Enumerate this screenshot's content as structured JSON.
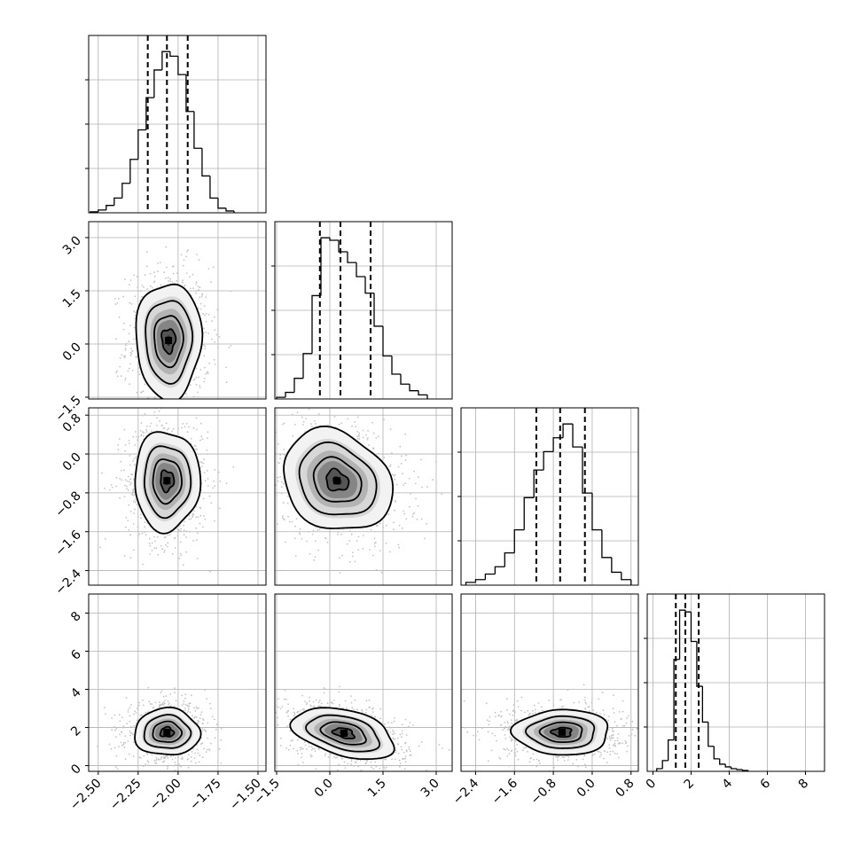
{
  "chart_data": {
    "type": "corner",
    "grid": true,
    "dims": [
      {
        "x_range": [
          -2.56,
          -1.45
        ],
        "x_ticks": [
          -2.5,
          -2.25,
          -2.0,
          -1.75,
          -1.5
        ],
        "x_tick_labels": [
          "−2.50",
          "−2.25",
          "−2.00",
          "−1.75",
          "−1.50"
        ],
        "y_ticks": [],
        "y_tick_labels": [],
        "mean": -2.06,
        "sd": 0.1,
        "quantiles": [
          -2.19,
          -2.07,
          -1.94
        ],
        "hist_edges": [
          -2.55,
          -2.5,
          -2.45,
          -2.4,
          -2.35,
          -2.3,
          -2.25,
          -2.2,
          -2.15,
          -2.1,
          -2.05,
          -2.0,
          -1.95,
          -1.9,
          -1.85,
          -1.8,
          -1.75,
          -1.7,
          -1.65
        ],
        "hist_counts": [
          1,
          3,
          8,
          16,
          32,
          58,
          90,
          125,
          155,
          175,
          170,
          150,
          110,
          70,
          40,
          16,
          5,
          2
        ]
      },
      {
        "x_range": [
          -1.55,
          3.45
        ],
        "x_ticks": [
          -1.5,
          0.0,
          1.5,
          3.0
        ],
        "x_tick_labels": [
          "−1.5",
          "0.0",
          "1.5",
          "3.0"
        ],
        "y_ticks": [
          -1.5,
          0.0,
          1.5,
          3.0
        ],
        "y_tick_labels": [
          "−1.5",
          "0.0",
          "1.5",
          "3.0"
        ],
        "mean": 0.3,
        "sd": 0.7,
        "quantiles": [
          -0.28,
          0.3,
          1.15
        ],
        "hist_edges": [
          -1.5,
          -1.25,
          -1.0,
          -0.75,
          -0.5,
          -0.25,
          0.0,
          0.25,
          0.5,
          0.75,
          1.0,
          1.25,
          1.5,
          1.75,
          2.0,
          2.25,
          2.5,
          2.75
        ],
        "hist_counts": [
          2,
          8,
          25,
          55,
          125,
          195,
          192,
          178,
          165,
          148,
          128,
          88,
          52,
          30,
          18,
          10,
          5
        ]
      },
      {
        "x_range": [
          -2.7,
          0.95
        ],
        "x_ticks": [
          -2.4,
          -1.6,
          -0.8,
          0.0,
          0.8
        ],
        "x_tick_labels": [
          "−2.4",
          "−1.6",
          "−0.8",
          "0.0",
          "0.8"
        ],
        "y_ticks": [
          -2.4,
          -1.6,
          -0.8,
          0.0,
          0.8
        ],
        "y_tick_labels": [
          "−2.4",
          "−1.6",
          "−0.8",
          "0.0",
          "0.8"
        ],
        "mean": -0.55,
        "sd": 0.5,
        "quantiles": [
          -1.15,
          -0.66,
          -0.15
        ],
        "hist_edges": [
          -2.6,
          -2.4,
          -2.2,
          -2.0,
          -1.8,
          -1.6,
          -1.4,
          -1.2,
          -1.0,
          -0.8,
          -0.6,
          -0.4,
          -0.2,
          0.0,
          0.2,
          0.4,
          0.6,
          0.8
        ],
        "hist_counts": [
          3,
          6,
          12,
          20,
          35,
          60,
          95,
          125,
          145,
          160,
          175,
          150,
          100,
          60,
          30,
          14,
          6
        ]
      },
      {
        "x_range": [
          -0.3,
          9.0
        ],
        "x_ticks": [
          0,
          2,
          4,
          6,
          8
        ],
        "x_tick_labels": [
          "0",
          "2",
          "4",
          "6",
          "8"
        ],
        "y_ticks": [
          0,
          2,
          4,
          6,
          8
        ],
        "y_tick_labels": [
          "0",
          "2",
          "4",
          "6",
          "8"
        ],
        "mean": 1.9,
        "sd": 0.7,
        "quantiles": [
          1.2,
          1.7,
          2.4
        ],
        "hist_edges": [
          0.2,
          0.5,
          0.8,
          1.1,
          1.4,
          1.7,
          2.0,
          2.3,
          2.6,
          2.9,
          3.2,
          3.5,
          3.8,
          4.1,
          4.4,
          4.7,
          5.0
        ],
        "hist_counts": [
          3,
          12,
          35,
          125,
          180,
          178,
          145,
          95,
          55,
          28,
          14,
          8,
          5,
          3,
          2,
          1
        ]
      }
    ],
    "pairs": [
      {
        "row": 1,
        "col": 0,
        "center": [
          -2.06,
          0.1
        ],
        "spread": [
          0.1,
          0.8
        ],
        "tilt": 0.0
      },
      {
        "row": 2,
        "col": 0,
        "center": [
          -2.07,
          -0.55
        ],
        "spread": [
          0.1,
          0.5
        ],
        "tilt": 0.0
      },
      {
        "row": 2,
        "col": 1,
        "center": [
          0.2,
          -0.55
        ],
        "spread": [
          0.75,
          0.5
        ],
        "tilt": -0.2
      },
      {
        "row": 3,
        "col": 0,
        "center": [
          -2.07,
          1.75
        ],
        "spread": [
          0.1,
          0.6
        ],
        "tilt": 0.0
      },
      {
        "row": 3,
        "col": 1,
        "center": [
          0.4,
          1.7
        ],
        "spread": [
          0.7,
          0.6
        ],
        "tilt": -0.45
      },
      {
        "row": 3,
        "col": 2,
        "center": [
          -0.62,
          1.75
        ],
        "spread": [
          0.48,
          0.58
        ],
        "tilt": 0.0
      }
    ]
  }
}
